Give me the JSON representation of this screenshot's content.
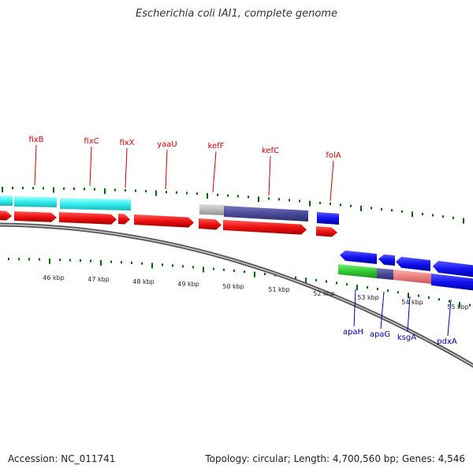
{
  "title": "Escherichia coli IAI1, complete genome",
  "footer": {
    "accession": "Accession: NC_011741",
    "summary": "Topology: circular; Length: 4,700,560 bp; Genes: 4,546"
  },
  "colors": {
    "forward_label": "#cc0000",
    "reverse_label": "#0000aa",
    "tick": "#006600",
    "backbone": "#888888",
    "red_gene": "#ee1111",
    "cyan_gene": "#33eeee",
    "blue_gene": "#1111ee",
    "purple_gene": "#4a4a99",
    "grey_gene": "#bbbbbb",
    "green_gene": "#33cc33",
    "pink_gene": "#ee8080"
  },
  "kbp_labels": [
    "46 kbp",
    "47 kbp",
    "48 kbp",
    "49 kbp",
    "50 kbp",
    "51 kbp",
    "52 kbp",
    "53 kbp",
    "54 kbp",
    "55 kbp"
  ],
  "forward_genes": [
    "fixB",
    "fixC",
    "fixX",
    "yaaU",
    "kefF",
    "kefC",
    "folA"
  ],
  "reverse_genes": [
    "apaH",
    "apaG",
    "ksgA",
    "pdxA"
  ]
}
